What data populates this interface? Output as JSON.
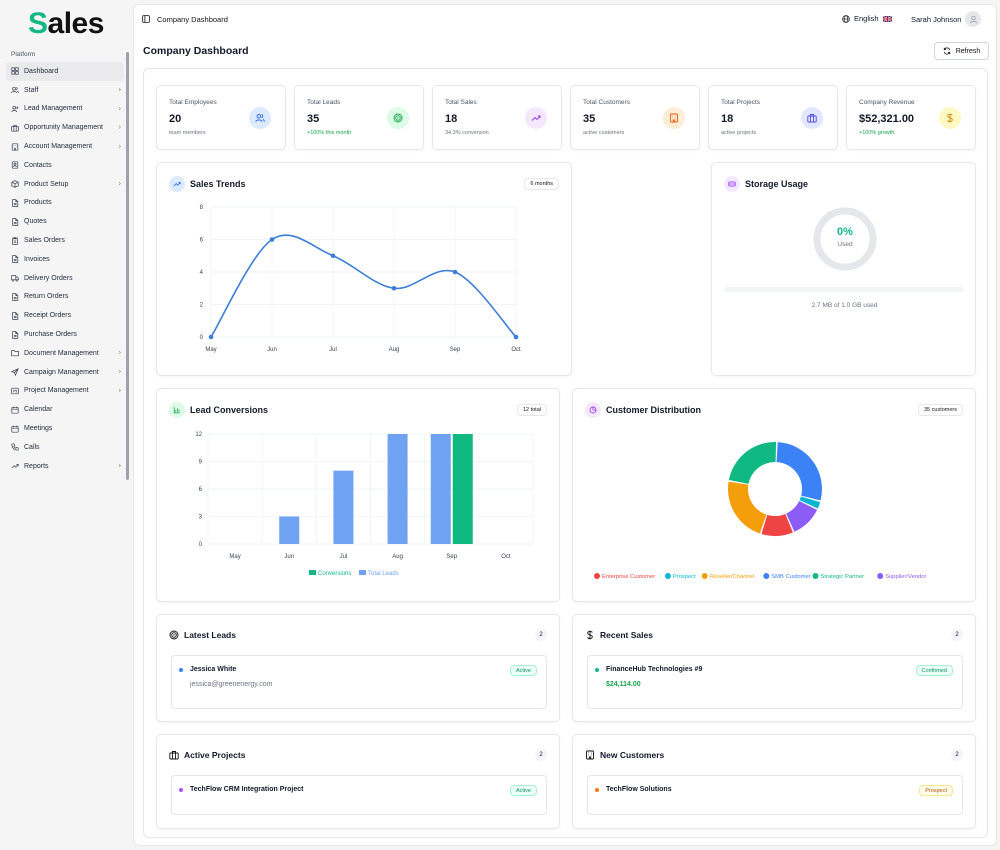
{
  "app": {
    "logo_first": "S",
    "logo_rest": "ales"
  },
  "sidebar": {
    "section": "Platform",
    "items": [
      {
        "label": "Dashboard",
        "icon": "dashboard-icon",
        "chevron": false,
        "active": true
      },
      {
        "label": "Staff",
        "icon": "users-icon",
        "chevron": true
      },
      {
        "label": "Lead Management",
        "icon": "user-plus-icon",
        "chevron": true
      },
      {
        "label": "Opportunity Management",
        "icon": "briefcase-icon",
        "chevron": true
      },
      {
        "label": "Account Management",
        "icon": "building-icon",
        "chevron": true
      },
      {
        "label": "Contacts",
        "icon": "contacts-icon",
        "chevron": false
      },
      {
        "label": "Product Setup",
        "icon": "package-icon",
        "chevron": true
      },
      {
        "label": "Products",
        "icon": "file-icon",
        "chevron": false
      },
      {
        "label": "Quotes",
        "icon": "file-icon",
        "chevron": false
      },
      {
        "label": "Sales Orders",
        "icon": "clipboard-icon",
        "chevron": false
      },
      {
        "label": "Invoices",
        "icon": "file-icon",
        "chevron": false
      },
      {
        "label": "Delivery Orders",
        "icon": "truck-icon",
        "chevron": false
      },
      {
        "label": "Return Orders",
        "icon": "file-icon",
        "chevron": false
      },
      {
        "label": "Receipt Orders",
        "icon": "file-icon",
        "chevron": false
      },
      {
        "label": "Purchase Orders",
        "icon": "file-icon",
        "chevron": false
      },
      {
        "label": "Document Management",
        "icon": "folder-icon",
        "chevron": true
      },
      {
        "label": "Campaign Management",
        "icon": "send-icon",
        "chevron": true
      },
      {
        "label": "Project Management",
        "icon": "kanban-icon",
        "chevron": true
      },
      {
        "label": "Calendar",
        "icon": "calendar-icon",
        "chevron": false
      },
      {
        "label": "Meetings",
        "icon": "calendar-icon",
        "chevron": false
      },
      {
        "label": "Calls",
        "icon": "phone-icon",
        "chevron": false
      },
      {
        "label": "Reports",
        "icon": "trending-up-icon",
        "chevron": true
      }
    ]
  },
  "topbar": {
    "breadcrumb": "Company Dashboard",
    "language": "English",
    "user": "Sarah Johnson"
  },
  "page": {
    "title": "Company Dashboard",
    "refresh_label": "Refresh"
  },
  "stats": [
    {
      "label": "Total Employees",
      "value": "20",
      "sub": "team members",
      "sub_color": "gray",
      "icon": "users-icon",
      "bg": "#dbeafe",
      "fg": "#2563eb"
    },
    {
      "label": "Total Leads",
      "value": "35",
      "sub": "+100% this month",
      "sub_color": "green",
      "icon": "target-icon",
      "bg": "#dcfce7",
      "fg": "#16a34a"
    },
    {
      "label": "Total Sales",
      "value": "18",
      "sub": "34.3% conversion",
      "sub_color": "gray",
      "icon": "trending-up-icon",
      "bg": "#f3e8ff",
      "fg": "#9333ea"
    },
    {
      "label": "Total Customers",
      "value": "35",
      "sub": "active customers",
      "sub_color": "gray",
      "icon": "building-icon",
      "bg": "#ffedd5",
      "fg": "#ea580c"
    },
    {
      "label": "Total Projects",
      "value": "18",
      "sub": "active projects",
      "sub_color": "gray",
      "icon": "briefcase-icon",
      "bg": "#e0e7ff",
      "fg": "#4f46e5"
    },
    {
      "label": "Company Revenue",
      "value": "$52,321.00",
      "sub": "+100% growth",
      "sub_color": "green",
      "icon": "dollar-icon",
      "bg": "#fef9c3",
      "fg": "#ca8a04"
    }
  ],
  "sales_trends": {
    "title": "Sales Trends",
    "badge": "6 months"
  },
  "storage": {
    "title": "Storage Usage",
    "percent": "0%",
    "used_label": "Used",
    "detail": "2.7 MB of 1.0 GB used",
    "fraction": 0.0
  },
  "lead_conversions": {
    "title": "Lead Conversions",
    "badge": "12 total"
  },
  "customer_distribution": {
    "title": "Customer Distribution",
    "badge": "35 customers"
  },
  "latest_leads": {
    "title": "Latest Leads",
    "count": "2",
    "item": {
      "name": "Jessica White",
      "sub": "jessica@greenenergy.com",
      "status": "Active"
    }
  },
  "recent_sales": {
    "title": "Recent Sales",
    "count": "2",
    "item": {
      "name": "FinanceHub Technologies #9",
      "amount": "$24,114.00",
      "status": "Confirmed"
    }
  },
  "active_projects": {
    "title": "Active Projects",
    "count": "2",
    "item": {
      "name": "TechFlow CRM Integration Project",
      "status": "Active"
    }
  },
  "new_customers": {
    "title": "New Customers",
    "count": "2",
    "item": {
      "name": "TechFlow Solutions",
      "status": "Prospect"
    }
  },
  "chart_data": [
    {
      "type": "line",
      "title": "Sales Trends",
      "categories": [
        "May",
        "Jun",
        "Jul",
        "Aug",
        "Sep",
        "Oct"
      ],
      "values": [
        0,
        6,
        5,
        3,
        4,
        0
      ],
      "y_ticks": [
        0,
        2,
        4,
        6,
        8
      ],
      "ylim": [
        0,
        8
      ],
      "color": "#3b7dd8",
      "grid": true
    },
    {
      "type": "bar",
      "title": "Lead Conversions",
      "categories": [
        "May",
        "Jun",
        "Jul",
        "Aug",
        "Sep",
        "Oct"
      ],
      "series": [
        {
          "name": "Total Leads",
          "color": "#6fa3f2",
          "values": [
            0,
            3,
            8,
            12,
            12,
            0
          ]
        },
        {
          "name": "Conversions",
          "color": "#10b981",
          "values": [
            0,
            0,
            0,
            0,
            12,
            0
          ]
        }
      ],
      "y_ticks": [
        0,
        3,
        6,
        9,
        12
      ],
      "ylim": [
        0,
        12
      ],
      "legend": [
        "Conversions",
        "Total Leads"
      ],
      "grid": true
    },
    {
      "type": "pie",
      "title": "Customer Distribution",
      "donut": true,
      "slices": [
        {
          "name": "Enterprise Customer",
          "value": 4,
          "color": "#ef4444"
        },
        {
          "name": "Prospect",
          "value": 1,
          "color": "#06b6d4"
        },
        {
          "name": "Reseller/Channel",
          "value": 8,
          "color": "#f59e0b"
        },
        {
          "name": "SMB Customer",
          "value": 10,
          "color": "#3b82f6"
        },
        {
          "name": "Strategic Partner",
          "value": 8,
          "color": "#10b981"
        },
        {
          "name": "Supplier/Vendor",
          "value": 4,
          "color": "#8b5cf6"
        }
      ],
      "draw_order": [
        "SMB Customer",
        "Prospect",
        "Supplier/Vendor",
        "Enterprise Customer",
        "Reseller/Channel",
        "Strategic Partner"
      ]
    }
  ]
}
